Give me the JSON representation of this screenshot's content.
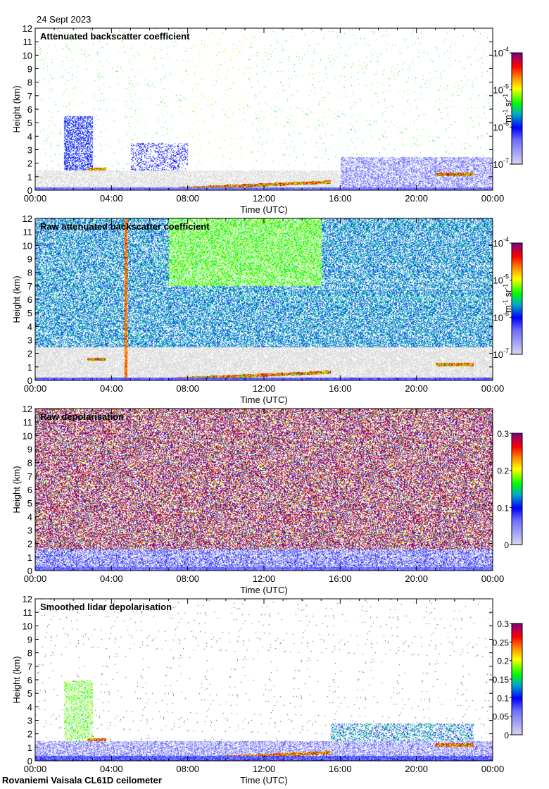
{
  "date_label": "24 Sept 2023",
  "footer": "Rovaniemi Vaisala CL61D ceilometer",
  "colors": {
    "min": "#d8d8ee",
    "blue": "#0000ff",
    "cyan": "#00c0c0",
    "green": "#00ff00",
    "yellow": "#ffff00",
    "orange": "#ff8000",
    "red": "#ff0000",
    "max": "#800080"
  },
  "chart_data": [
    {
      "type": "heatmap",
      "title": "Attenuated backscatter coefficient",
      "xlabel": "Time (UTC)",
      "ylabel": "Height (km)",
      "xticks": [
        "00:00",
        "04:00",
        "08:00",
        "12:00",
        "16:00",
        "20:00",
        "00:00"
      ],
      "yticks": [
        "0",
        "1",
        "2",
        "3",
        "4",
        "5",
        "6",
        "7",
        "8",
        "9",
        "10",
        "11",
        "12"
      ],
      "ylim": [
        0,
        12
      ],
      "xlim_hours": [
        0,
        24
      ],
      "colorbar": {
        "scale": "log",
        "ticks": [
          {
            "base": "10",
            "exp": "-7"
          },
          {
            "base": "10",
            "exp": "-6"
          },
          {
            "base": "10",
            "exp": "-5"
          },
          {
            "base": "10",
            "exp": "-4"
          }
        ],
        "label": "m",
        "label_exp1": "-1",
        "label2": " sr",
        "label_exp2": "-1"
      }
    },
    {
      "type": "heatmap",
      "title": "Raw attenuated backscatter coefficient",
      "xlabel": "Time (UTC)",
      "ylabel": "Height (km)",
      "xticks": [
        "00:00",
        "04:00",
        "08:00",
        "12:00",
        "16:00",
        "20:00",
        "00:00"
      ],
      "yticks": [
        "0",
        "1",
        "2",
        "3",
        "4",
        "5",
        "6",
        "7",
        "8",
        "9",
        "10",
        "11",
        "12"
      ],
      "ylim": [
        0,
        12
      ],
      "xlim_hours": [
        0,
        24
      ],
      "colorbar": {
        "scale": "log",
        "ticks": [
          {
            "base": "10",
            "exp": "-7"
          },
          {
            "base": "10",
            "exp": "-6"
          },
          {
            "base": "10",
            "exp": "-5"
          },
          {
            "base": "10",
            "exp": "-4"
          }
        ],
        "label": "m",
        "label_exp1": "-1",
        "label2": " sr",
        "label_exp2": "-1"
      }
    },
    {
      "type": "heatmap",
      "title": "Raw depolarisation",
      "xlabel": "Time (UTC)",
      "ylabel": "Height (km)",
      "xticks": [
        "00:00",
        "04:00",
        "08:00",
        "12:00",
        "16:00",
        "20:00",
        "00:00"
      ],
      "yticks": [
        "0",
        "1",
        "2",
        "3",
        "4",
        "5",
        "6",
        "7",
        "8",
        "9",
        "10",
        "11",
        "12"
      ],
      "ylim": [
        0,
        12
      ],
      "xlim_hours": [
        0,
        24
      ],
      "colorbar": {
        "scale": "linear",
        "range": [
          0,
          0.3
        ],
        "ticks": [
          {
            "base": "0"
          },
          {
            "base": "0.1"
          },
          {
            "base": "0.2"
          },
          {
            "base": "0.3"
          }
        ]
      }
    },
    {
      "type": "heatmap",
      "title": "Smoothed lidar depolarisation",
      "xlabel": "Time (UTC)",
      "ylabel": "Height (km)",
      "xticks": [
        "00:00",
        "04:00",
        "08:00",
        "12:00",
        "16:00",
        "20:00",
        "00:00"
      ],
      "yticks": [
        "0",
        "1",
        "2",
        "3",
        "4",
        "5",
        "6",
        "7",
        "8",
        "9",
        "10",
        "11",
        "12"
      ],
      "ylim": [
        0,
        12
      ],
      "xlim_hours": [
        0,
        24
      ],
      "colorbar": {
        "scale": "linear",
        "range": [
          0,
          0.3
        ],
        "ticks": [
          {
            "base": "0"
          },
          {
            "base": "0.05"
          },
          {
            "base": "0.1"
          },
          {
            "base": "0.15"
          },
          {
            "base": "0.2"
          },
          {
            "base": "0.25"
          },
          {
            "base": "0.3"
          }
        ]
      }
    }
  ]
}
